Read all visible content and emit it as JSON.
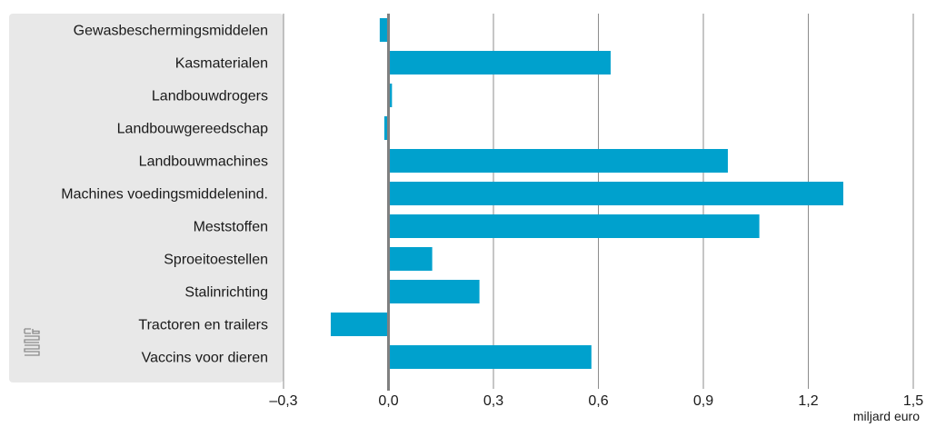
{
  "chart_data": {
    "type": "bar",
    "orientation": "horizontal",
    "categories": [
      "Gewasbeschermingsmiddelen",
      "Kasmaterialen",
      "Landbouwdrogers",
      "Landbouwgereedschap",
      "Landbouwmachines",
      "Machines voedingsmiddelenind.",
      "Meststoffen",
      "Sproeitoestellen",
      "Stalinrichting",
      "Tractoren en trailers",
      "Vaccins voor dieren"
    ],
    "values": [
      -0.025,
      0.635,
      0.01,
      -0.012,
      0.97,
      1.3,
      1.06,
      0.125,
      0.26,
      -0.165,
      0.58
    ],
    "x_ticks": [
      "–0,3",
      "0,0",
      "0,3",
      "0,6",
      "0,9",
      "1,2",
      "1,5"
    ],
    "x_tick_values": [
      -0.3,
      0,
      0.3,
      0.6,
      0.9,
      1.2,
      1.5
    ],
    "xlim": [
      -0.3,
      1.5
    ],
    "unit_label": "miljard euro",
    "grid": true,
    "bar_color": "#00a1cd",
    "zero_line_color": "#808080",
    "grid_color": "#8c8c8c",
    "label_panel_color": "#e8e8e8",
    "logo_icon": "cbs-logo-icon"
  }
}
